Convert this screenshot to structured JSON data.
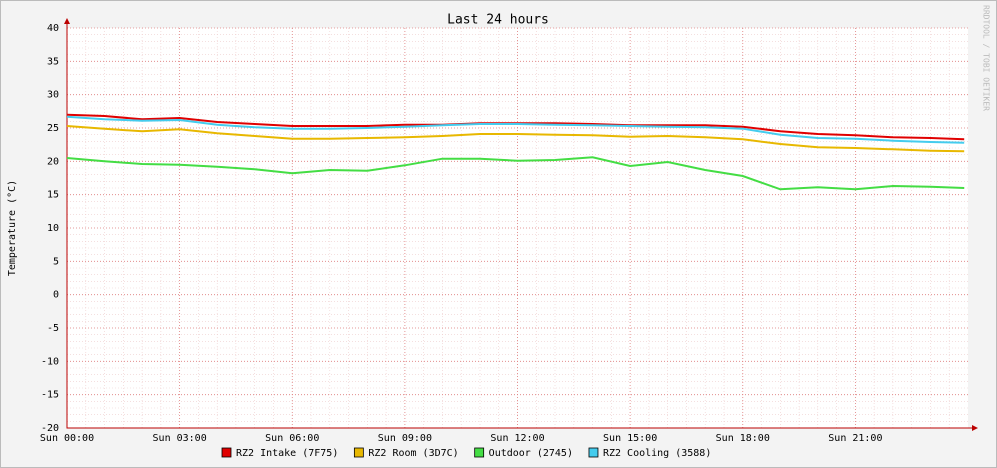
{
  "chart_data": {
    "type": "line",
    "title": "Last 24 hours",
    "ylabel": "Temperature (°C)",
    "watermark": "RRDTOOL / TOBI OETIKER",
    "x": [
      0,
      1,
      2,
      3,
      4,
      5,
      6,
      7,
      8,
      9,
      10,
      11,
      12,
      13,
      14,
      15,
      16,
      17,
      18,
      19,
      20,
      21,
      22,
      23,
      23.9
    ],
    "xlim": [
      0,
      24
    ],
    "xticks": [
      {
        "value": 0,
        "label": "Sun 00:00"
      },
      {
        "value": 3,
        "label": "Sun 03:00"
      },
      {
        "value": 6,
        "label": "Sun 06:00"
      },
      {
        "value": 9,
        "label": "Sun 09:00"
      },
      {
        "value": 12,
        "label": "Sun 12:00"
      },
      {
        "value": 15,
        "label": "Sun 15:00"
      },
      {
        "value": 18,
        "label": "Sun 18:00"
      },
      {
        "value": 21,
        "label": "Sun 21:00"
      }
    ],
    "ylim": [
      -20,
      40
    ],
    "yticks": [
      -20,
      -15,
      -10,
      -5,
      0,
      5,
      10,
      15,
      20,
      25,
      30,
      35,
      40
    ],
    "grid": true,
    "series": [
      {
        "name": "RZ2 Intake (7F75)",
        "color": "#e00000",
        "values": [
          27,
          26.8,
          26.3,
          26.5,
          25.9,
          25.6,
          25.3,
          25.3,
          25.3,
          25.5,
          25.5,
          25.7,
          25.7,
          25.7,
          25.6,
          25.4,
          25.4,
          25.4,
          25.2,
          24.5,
          24.1,
          23.9,
          23.6,
          23.5,
          23.3
        ]
      },
      {
        "name": "RZ2 Room (3D7C)",
        "color": "#e8b800",
        "values": [
          25.3,
          24.9,
          24.5,
          24.8,
          24.2,
          23.8,
          23.4,
          23.4,
          23.5,
          23.6,
          23.8,
          24.1,
          24.1,
          24.0,
          23.9,
          23.7,
          23.8,
          23.6,
          23.3,
          22.6,
          22.1,
          22.0,
          21.8,
          21.6,
          21.5
        ]
      },
      {
        "name": "Outdoor (2745)",
        "color": "#44dd44",
        "values": [
          20.5,
          20.0,
          19.6,
          19.5,
          19.2,
          18.8,
          18.2,
          18.7,
          18.6,
          19.4,
          20.4,
          20.4,
          20.1,
          20.2,
          20.6,
          19.3,
          19.9,
          18.7,
          17.8,
          15.8,
          16.1,
          15.8,
          16.3,
          16.2,
          16.0
        ]
      },
      {
        "name": "RZ2 Cooling (3588)",
        "color": "#44ccee",
        "values": [
          26.7,
          26.3,
          26.1,
          26.2,
          25.5,
          25.1,
          24.9,
          24.9,
          25.0,
          25.2,
          25.4,
          25.6,
          25.6,
          25.5,
          25.4,
          25.3,
          25.2,
          25.1,
          24.9,
          24.0,
          23.5,
          23.4,
          23.1,
          22.9,
          22.8
        ]
      }
    ]
  }
}
